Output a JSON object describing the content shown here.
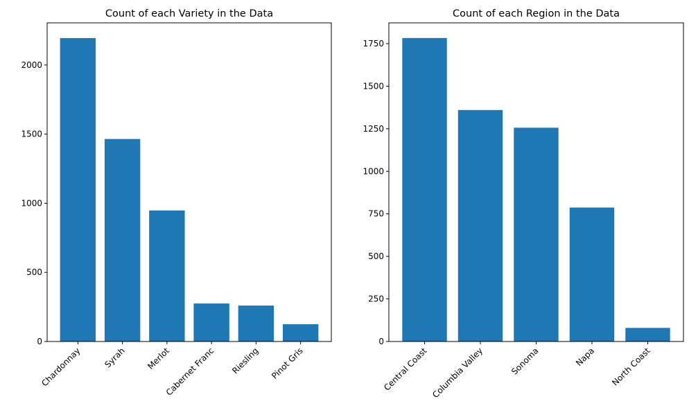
{
  "chart_data": [
    {
      "type": "bar",
      "title": "Count of each Variety in the Data",
      "xlabel": "",
      "ylabel": "",
      "categories": [
        "Chardonnay",
        "Syrah",
        "Merlot",
        "Cabernet Franc",
        "Riesling",
        "Pinot Gris"
      ],
      "values": [
        2195,
        1465,
        948,
        275,
        260,
        125
      ],
      "ylim": [
        0,
        2305
      ],
      "yticks": [
        0,
        500,
        1000,
        1500,
        2000
      ],
      "color": "#1f77b4",
      "grid": false,
      "x_tick_rotation": 45
    },
    {
      "type": "bar",
      "title": "Count of each Region in the Data",
      "xlabel": "",
      "ylabel": "",
      "categories": [
        "Central Coast",
        "Columbia Valley",
        "Sonoma",
        "Napa",
        "North Coast"
      ],
      "values": [
        1783,
        1360,
        1256,
        787,
        80
      ],
      "ylim": [
        0,
        1872
      ],
      "yticks": [
        0,
        250,
        500,
        750,
        1000,
        1250,
        1500,
        1750
      ],
      "color": "#1f77b4",
      "grid": false,
      "x_tick_rotation": 45
    }
  ]
}
